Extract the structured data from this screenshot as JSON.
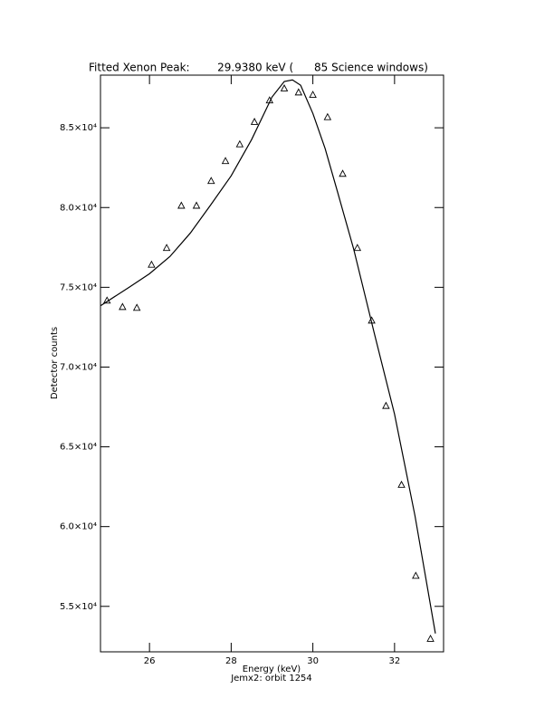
{
  "chart_data": {
    "type": "line",
    "title": "Fitted Xenon Peak:        29.9380 keV (      85 Science windows)",
    "x_label": "Energy (keV)",
    "subtitle": "Jemx2: orbit 1254",
    "y_label": "Detector counts",
    "xlim": [
      24.8,
      33.2
    ],
    "ylim": [
      52150,
      88300
    ],
    "xticks": [
      26,
      28,
      30,
      32
    ],
    "yticks": [
      {
        "value": 55000,
        "label": "5.5×10⁴"
      },
      {
        "value": 60000,
        "label": "6.0×10⁴"
      },
      {
        "value": 65000,
        "label": "6.5×10⁴"
      },
      {
        "value": 70000,
        "label": "7.0×10⁴"
      },
      {
        "value": 75000,
        "label": "7.5×10⁴"
      },
      {
        "value": 80000,
        "label": "8.0×10⁴"
      },
      {
        "value": 85000,
        "label": "8.5×10⁴"
      }
    ],
    "series": [
      {
        "mode": "markers",
        "marker": "triangle",
        "color": "#000000",
        "x": [
          24.96,
          25.34,
          25.69,
          26.05,
          26.42,
          26.78,
          27.15,
          27.51,
          27.86,
          28.21,
          28.57,
          28.94,
          29.3,
          29.65,
          30.0,
          30.36,
          30.73,
          31.09,
          31.44,
          31.79,
          32.17,
          32.52,
          32.88
        ],
        "values": [
          74150,
          73750,
          73700,
          76400,
          77450,
          80100,
          80100,
          81650,
          82900,
          83950,
          85350,
          86700,
          87450,
          87200,
          87050,
          85650,
          82100,
          77450,
          72900,
          67550,
          62600,
          56900,
          52950
        ]
      },
      {
        "mode": "line",
        "color": "#000000",
        "x": [
          24.81,
          25.5,
          26.0,
          26.5,
          27.0,
          27.5,
          28.0,
          28.5,
          29.0,
          29.3,
          29.5,
          29.7,
          30.0,
          30.3,
          30.6,
          31.0,
          31.5,
          32.0,
          32.5,
          33.0
        ],
        "values": [
          73860,
          75000,
          75850,
          76930,
          78400,
          80170,
          81990,
          84260,
          86930,
          87900,
          88000,
          87670,
          85900,
          83700,
          81020,
          77390,
          72160,
          67050,
          60680,
          53300
        ]
      }
    ]
  }
}
